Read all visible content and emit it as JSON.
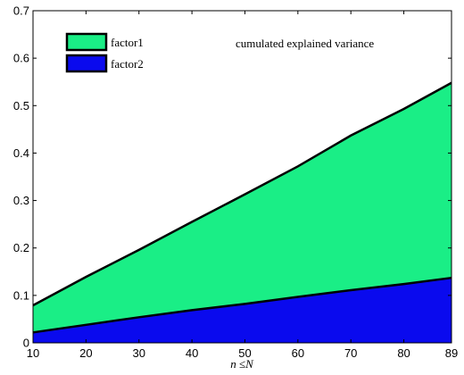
{
  "chart_data": {
    "type": "area",
    "stacked": false,
    "x": [
      10,
      20,
      30,
      40,
      50,
      60,
      70,
      80,
      89
    ],
    "series": [
      {
        "name": "factor1",
        "color": "#1aee86",
        "values": [
          0.079,
          0.139,
          0.196,
          0.255,
          0.313,
          0.372,
          0.437,
          0.493,
          0.548
        ]
      },
      {
        "name": "factor2",
        "color": "#0a0aee",
        "values": [
          0.022,
          0.038,
          0.054,
          0.069,
          0.082,
          0.097,
          0.111,
          0.124,
          0.137
        ]
      }
    ],
    "annotation": "cumulated explained variance",
    "xlabel": "n ≤N",
    "ylabel": "",
    "xlim": [
      10,
      89
    ],
    "ylim": [
      0,
      0.7
    ],
    "xticks": [
      "10",
      "20",
      "30",
      "40",
      "50",
      "60",
      "70",
      "80",
      "89"
    ],
    "yticks": [
      "0",
      "0.1",
      "0.2",
      "0.3",
      "0.4",
      "0.5",
      "0.6",
      "0.7"
    ],
    "grid": false,
    "legend_position": "top-left"
  }
}
